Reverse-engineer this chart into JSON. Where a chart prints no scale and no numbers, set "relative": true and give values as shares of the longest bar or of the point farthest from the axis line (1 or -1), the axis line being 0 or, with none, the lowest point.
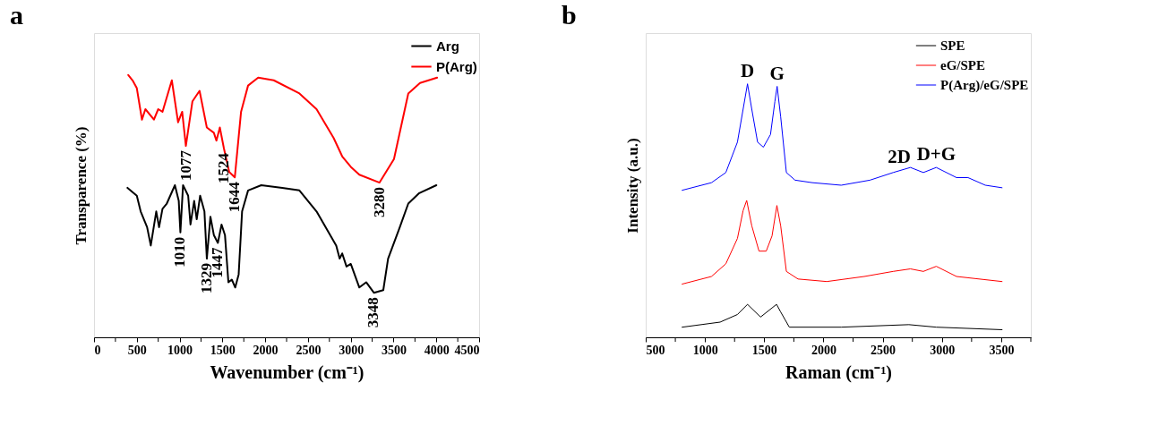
{
  "chart_data": [
    {
      "type": "line",
      "title": "a",
      "xlabel": "Wavenumber (cm⁻¹)",
      "ylabel": "Transparence (%)",
      "relative": true,
      "legend": "top right",
      "xlim": [
        0,
        4500
      ],
      "xticks": [
        0,
        {
          "value": 250,
          "label": null
        },
        500,
        {
          "value": 750,
          "label": null
        },
        1000,
        {
          "value": 1250,
          "label": null
        },
        1500,
        {
          "value": 1750,
          "label": null
        },
        2000,
        {
          "value": 2250,
          "label": null
        },
        2500,
        {
          "value": 2750,
          "label": null
        },
        3000,
        {
          "value": 3250,
          "label": null
        },
        3500,
        {
          "value": 3750,
          "label": null
        },
        4000,
        {
          "value": 4250,
          "label": null
        },
        4500
      ],
      "series": [
        {
          "name": "Arg",
          "color": "#000000",
          "x": [
            391,
            500,
            545,
            620,
            663,
            727,
            760,
            800,
            850,
            945,
            990,
            1009,
            1040,
            1100,
            1127,
            1170,
            1200,
            1240,
            1290,
            1318,
            1360,
            1400,
            1447,
            1490,
            1530,
            1570,
            1610,
            1650,
            1690,
            1730,
            1800,
            1954,
            2200,
            2400,
            2600,
            2830,
            2870,
            2900,
            2950,
            3000,
            3100,
            3180,
            3270,
            3380,
            3436,
            3573,
            3672,
            3800,
            4000
          ],
          "values": [
            0.57,
            0.54,
            0.48,
            0.42,
            0.35,
            0.48,
            0.42,
            0.49,
            0.51,
            0.58,
            0.52,
            0.4,
            0.58,
            0.54,
            0.43,
            0.52,
            0.45,
            0.54,
            0.48,
            0.3,
            0.46,
            0.39,
            0.36,
            0.43,
            0.39,
            0.21,
            0.22,
            0.19,
            0.24,
            0.48,
            0.56,
            0.58,
            0.57,
            0.56,
            0.48,
            0.35,
            0.3,
            0.32,
            0.27,
            0.28,
            0.19,
            0.21,
            0.17,
            0.18,
            0.3,
            0.42,
            0.51,
            0.55,
            0.58
          ]
        },
        {
          "name": "P(Arg)",
          "color": "#ff0000",
          "x": [
            400,
            450,
            500,
            560,
            600,
            700,
            750,
            800,
            909,
            982,
            1030,
            1073,
            1150,
            1233,
            1318,
            1400,
            1430,
            1470,
            1518,
            1580,
            1645,
            1718,
            1800,
            1918,
            2100,
            2400,
            2600,
            2800,
            2900,
            3000,
            3100,
            3336,
            3505,
            3672,
            3809,
            4009
          ],
          "values": [
            1.0,
            0.98,
            0.95,
            0.83,
            0.87,
            0.83,
            0.87,
            0.86,
            0.98,
            0.82,
            0.86,
            0.73,
            0.9,
            0.94,
            0.8,
            0.78,
            0.75,
            0.8,
            0.72,
            0.63,
            0.61,
            0.86,
            0.96,
            0.99,
            0.98,
            0.93,
            0.87,
            0.76,
            0.69,
            0.65,
            0.62,
            0.59,
            0.68,
            0.93,
            0.97,
            0.99
          ]
        }
      ],
      "annotations": [
        {
          "text": "1077",
          "x": 1073,
          "y": 0.73
        },
        {
          "text": "1010",
          "x": 1009,
          "y": 0.4
        },
        {
          "text": "1329",
          "x": 1318,
          "y": 0.3
        },
        {
          "text": "1447",
          "x": 1447,
          "y": 0.36
        },
        {
          "text": "1524",
          "x": 1518,
          "y": 0.72
        },
        {
          "text": "1644",
          "x": 1645,
          "y": 0.61
        },
        {
          "text": "3280",
          "x": 3336,
          "y": 0.59
        },
        {
          "text": "3348",
          "x": 3270,
          "y": 0.17
        }
      ]
    },
    {
      "type": "line",
      "title": "b",
      "xlabel": "Raman (cm⁻¹)",
      "ylabel": "Intensity (a.u.)",
      "relative": true,
      "legend": "top right",
      "xlim": [
        500,
        3750
      ],
      "xticks": [
        500,
        {
          "value": 750,
          "label": null
        },
        1000,
        {
          "value": 1250,
          "label": null
        },
        1500,
        {
          "value": 1750,
          "label": null
        },
        2000,
        {
          "value": 2250,
          "label": null
        },
        2500,
        {
          "value": 2750,
          "label": null
        },
        3000,
        {
          "value": 3250,
          "label": null
        },
        3500,
        {
          "value": 3750,
          "label": null
        }
      ],
      "series": [
        {
          "name": "SPE",
          "color": "#000000",
          "x": [
            807,
            1128,
            1274,
            1359,
            1469,
            1604,
            1639,
            1712,
            2150,
            2721,
            2952,
            3507
          ],
          "values": [
            0.04,
            0.06,
            0.09,
            0.13,
            0.08,
            0.13,
            0.1,
            0.04,
            0.04,
            0.05,
            0.04,
            0.03
          ]
        },
        {
          "name": "eG/SPE",
          "color": "#ff0000",
          "x": [
            807,
            1055,
            1176,
            1274,
            1322,
            1352,
            1395,
            1456,
            1517,
            1566,
            1607,
            1639,
            1687,
            1785,
            2028,
            2344,
            2588,
            2734,
            2843,
            2952,
            3123,
            3507
          ],
          "values": [
            0.21,
            0.24,
            0.29,
            0.39,
            0.5,
            0.54,
            0.44,
            0.34,
            0.34,
            0.4,
            0.52,
            0.44,
            0.26,
            0.23,
            0.22,
            0.24,
            0.26,
            0.27,
            0.26,
            0.28,
            0.24,
            0.22
          ]
        },
        {
          "name": "P(Arg)/eG/SPE",
          "color": "#0000ff",
          "x": [
            807,
            1055,
            1176,
            1274,
            1322,
            1359,
            1395,
            1444,
            1493,
            1553,
            1590,
            1609,
            1639,
            1687,
            1760,
            1906,
            2150,
            2393,
            2588,
            2734,
            2843,
            2952,
            3123,
            3220,
            3366,
            3507
          ],
          "values": [
            0.58,
            0.61,
            0.65,
            0.77,
            0.9,
            1.0,
            0.9,
            0.77,
            0.75,
            0.8,
            0.93,
            0.99,
            0.87,
            0.65,
            0.62,
            0.61,
            0.6,
            0.62,
            0.65,
            0.67,
            0.65,
            0.67,
            0.63,
            0.63,
            0.6,
            0.59
          ]
        }
      ],
      "annotations": [
        {
          "text": "D",
          "x": 1359,
          "y": 1.0
        },
        {
          "text": "G",
          "x": 1609,
          "y": 0.99
        },
        {
          "text": "2D",
          "x": 2640,
          "y": 0.66
        },
        {
          "text": "D+G",
          "x": 2952,
          "y": 0.67
        }
      ]
    }
  ]
}
